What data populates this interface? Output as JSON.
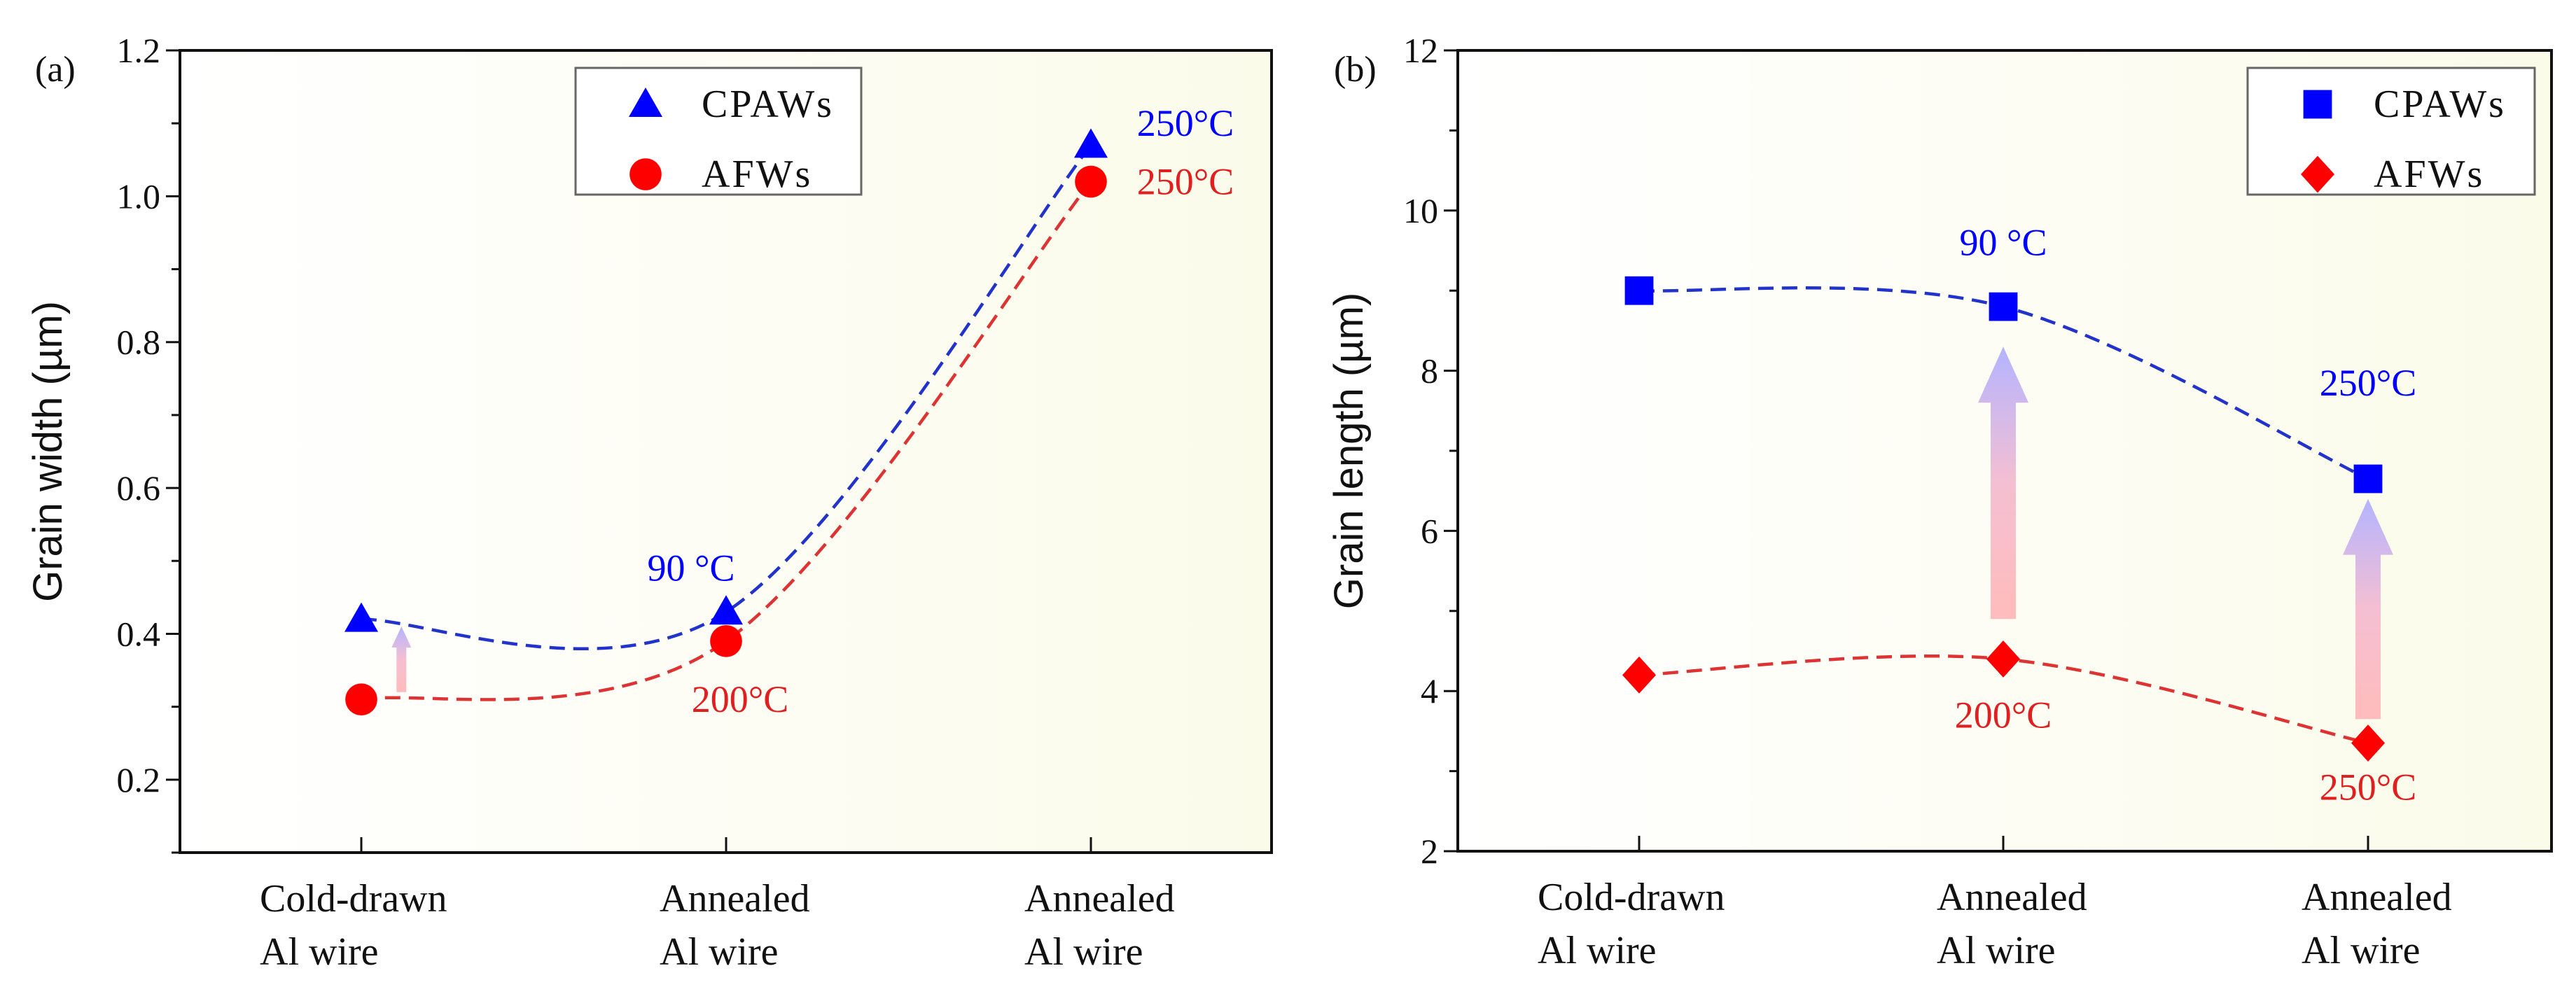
{
  "colors": {
    "cpaw": "#0000ff",
    "afw": "#ff0000",
    "cpaw_line": "#2233cc",
    "afw_line": "#dd3333",
    "arrow_top": "#b8b8ff",
    "arrow_bottom": "#ffb8b8"
  },
  "chart_data": [
    {
      "panel_label": "(a)",
      "type": "scatter",
      "title": "",
      "xlabel": "",
      "ylabel": "Grain width (µm)",
      "ylim": [
        0.1,
        1.2
      ],
      "yticks": [
        "0.2",
        "0.4",
        "0.6",
        "0.8",
        "1.0",
        "1.2"
      ],
      "ytick_values": [
        0.2,
        0.4,
        0.6,
        0.8,
        1.0,
        1.2
      ],
      "ymajor": 0.2,
      "yminor": 0.1,
      "categories": [
        [
          "Cold-drawn",
          "Al wire"
        ],
        [
          "Annealed",
          "Al wire"
        ],
        [
          "Annealed",
          "Al wire"
        ]
      ],
      "legend_position": "top-center",
      "series": [
        {
          "name": "CPAWs",
          "marker": "triangle",
          "values": [
            0.42,
            0.43,
            1.07
          ]
        },
        {
          "name": "AFWs",
          "marker": "circle",
          "values": [
            0.31,
            0.39,
            1.02
          ]
        }
      ],
      "annotations": [
        {
          "text": "90 °C",
          "series": 0,
          "cat": 1,
          "y": 0.49
        },
        {
          "text": "250°C",
          "series": 0,
          "cat": 2,
          "y": 1.1
        },
        {
          "text": "200°C",
          "series": 1,
          "cat": 1,
          "y": 0.31
        },
        {
          "text": "250°C",
          "series": 1,
          "cat": 2,
          "y": 1.02
        }
      ],
      "arrows": [
        {
          "cat": 0.11,
          "from": 0.32,
          "to": 0.41
        }
      ]
    },
    {
      "panel_label": "(b)",
      "type": "scatter",
      "title": "",
      "xlabel": "",
      "ylabel": "Grain length (µm)",
      "ylim": [
        2,
        12
      ],
      "yticks": [
        "2",
        "4",
        "6",
        "8",
        "10",
        "12"
      ],
      "ytick_values": [
        2,
        4,
        6,
        8,
        10,
        12
      ],
      "ymajor": 2,
      "yminor": 1,
      "categories": [
        [
          "Cold-drawn",
          "Al wire"
        ],
        [
          "Annealed",
          "Al wire"
        ],
        [
          "Annealed",
          "Al wire"
        ]
      ],
      "legend_position": "top-right",
      "series": [
        {
          "name": "CPAWs",
          "marker": "square",
          "values": [
            9.0,
            8.8,
            6.65
          ]
        },
        {
          "name": "AFWs",
          "marker": "diamond",
          "values": [
            4.2,
            4.4,
            3.35
          ]
        }
      ],
      "annotations": [
        {
          "text": "90 °C",
          "series": 0,
          "cat": 1,
          "y": 9.6
        },
        {
          "text": "250°C",
          "series": 0,
          "cat": 2,
          "y": 7.85
        },
        {
          "text": "200°C",
          "series": 1,
          "cat": 1,
          "y": 3.7
        },
        {
          "text": "250°C",
          "series": 1,
          "cat": 2,
          "y": 2.8
        }
      ],
      "arrows": [
        {
          "cat": 1,
          "from": 4.9,
          "to": 8.3
        },
        {
          "cat": 2,
          "from": 3.65,
          "to": 6.4
        }
      ]
    }
  ]
}
